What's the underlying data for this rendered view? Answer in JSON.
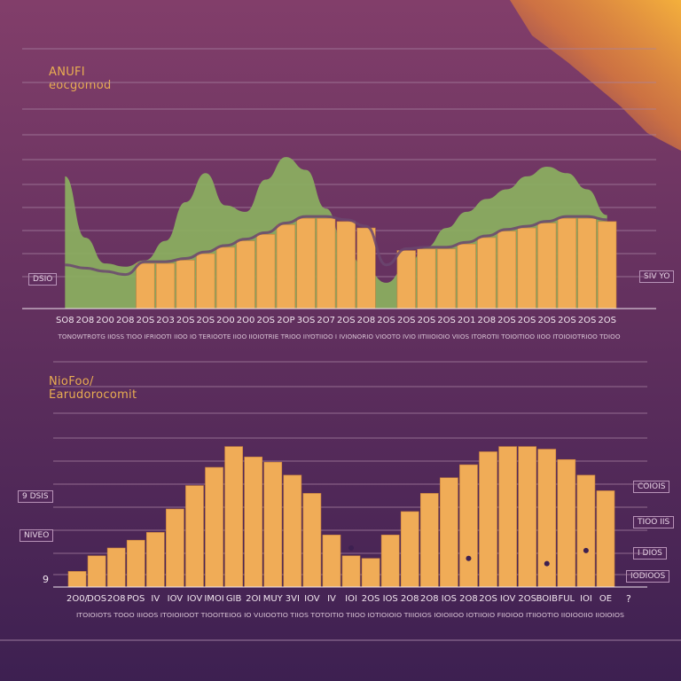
{
  "colors": {
    "background_top": "#823e6a",
    "background_bottom": "#3d2051",
    "corner_glow": "#f4b03c",
    "grid": "#a883a2",
    "bar": "#f0ac57",
    "bar_top": "#f4bf6d",
    "area_green": "#8bb060",
    "line": "#6b4670",
    "label": "#f2e6ef"
  },
  "chart_data": [
    {
      "type": "bar",
      "title_line1": "ANUFI",
      "title_line2": "eocgomod",
      "categories": [
        "SO8",
        "2O8",
        "2O0",
        "2O8",
        "2OS",
        "2O3",
        "2OS",
        "2OS",
        "2O0",
        "2O0",
        "2OS",
        "2OP",
        "3OS",
        "2O7",
        "2OS",
        "2O8",
        "2OS",
        "2OS",
        "2OS",
        "2OS",
        "2O1",
        "2O8",
        "2OS",
        "2OS",
        "2OS",
        "2OS",
        "2OS",
        "2OS"
      ],
      "values": [
        0,
        0,
        0,
        0,
        28,
        28,
        30,
        34,
        38,
        42,
        46,
        52,
        56,
        56,
        54,
        50,
        0,
        36,
        37,
        37,
        40,
        44,
        48,
        50,
        53,
        56,
        56,
        54
      ],
      "area_values": [
        82,
        44,
        28,
        26,
        30,
        42,
        66,
        84,
        64,
        60,
        80,
        94,
        86,
        62,
        36,
        24,
        16,
        26,
        38,
        50,
        60,
        68,
        74,
        82,
        88,
        84,
        74,
        58
      ],
      "line_values": [
        26,
        24,
        22,
        20,
        28,
        28,
        30,
        34,
        38,
        42,
        46,
        52,
        56,
        56,
        54,
        50,
        26,
        36,
        37,
        37,
        40,
        44,
        48,
        50,
        53,
        56,
        56,
        54
      ],
      "ylim": [
        0,
        110
      ],
      "grid": true,
      "y_tag_left": "DSIO",
      "y_tag_right": "SIV YO",
      "footnote": "TONOWTROTG IIOSS TIOO IFRIOOTI IIOO IO  TERIOOTE IIOO IIOIOTRIE TRIOO IIYOTIIOO  I IVIONORIO VIOOTO IVIO IITIIIOIOIO VIIOS ITOROTII TOIOITIOO IIOO ITOIOIOTRIOO TDIOO"
    },
    {
      "type": "bar",
      "title_line1": "NioFoo/",
      "title_line2": "Earudorocomit",
      "categories": [
        "2O0/",
        "DOS",
        "2O8",
        "POS",
        "IV",
        "IOV",
        "IOV",
        "IMOI",
        "GIB",
        "2OI",
        "MUY",
        "3VI",
        "IOV",
        "IV",
        "IOI",
        "2OS",
        "IOS",
        "2O8",
        "2O8",
        "IOS",
        "2O8",
        "2OS",
        "IOV",
        "2OS",
        "BOIB",
        "FUL",
        "IOI",
        "OE"
      ],
      "values": [
        12,
        24,
        30,
        36,
        42,
        60,
        78,
        92,
        108,
        100,
        96,
        86,
        72,
        40,
        24,
        22,
        40,
        58,
        72,
        84,
        94,
        104,
        108,
        108,
        106,
        98,
        86,
        74
      ],
      "ylim": [
        0,
        120
      ],
      "grid": true,
      "points_values": [
        30,
        22,
        18,
        28
      ],
      "y_tags_left": [
        "9 DSIS",
        "NIVEO"
      ],
      "y_tags_right": [
        "COIOIS",
        "TIOO IIS",
        "I DIOS",
        "IODIOOS"
      ],
      "y_axis_start": "9",
      "y_axis_start_right": "?",
      "footnote": "ITOIOIOTS TOOO IIIOOS ITOIOIIOOT TIOOITEIOG IO VUIOOTIO TIIOS TOTOITIO TIIOO IOTIOIOIO TIIIOIOS IOIOIIOO IOTIIOIO FIIOIOO ITIIOOTIO IIOIOOIIO IIOIOIOS"
    }
  ]
}
